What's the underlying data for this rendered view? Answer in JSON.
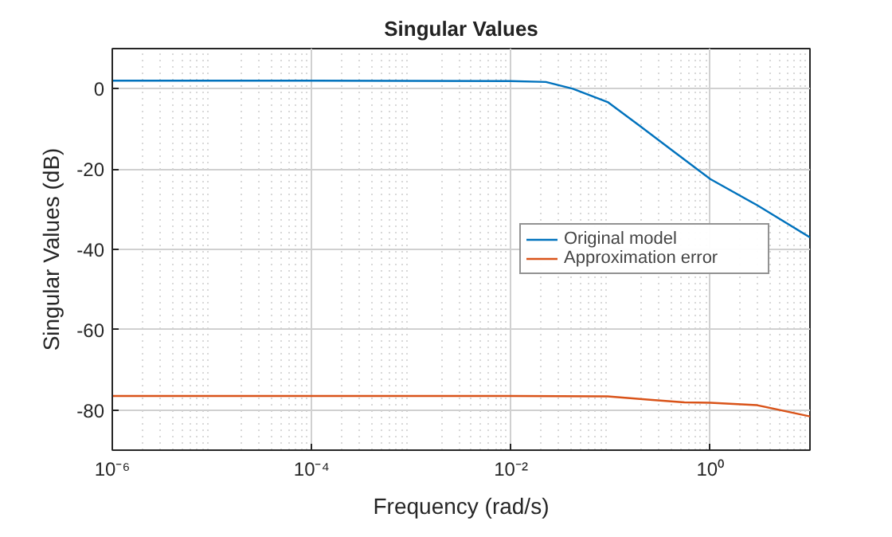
{
  "chart_data": {
    "type": "line",
    "title": "Singular Values",
    "xlabel": "Frequency (rad/s)",
    "ylabel": "Singular Values (dB)",
    "log": "x",
    "xlim": [
      1e-06,
      10
    ],
    "ylim": [
      -90,
      10
    ],
    "xticks": [
      {
        "value": 1e-06,
        "label": "10⁻⁶"
      },
      {
        "value": 0.0001,
        "label": "10⁻⁴"
      },
      {
        "value": 0.01,
        "label": "10⁻²"
      },
      {
        "value": 1,
        "label": "10⁰"
      }
    ],
    "yticks": [
      -80,
      -60,
      -40,
      -20,
      0
    ],
    "grid": true,
    "legend": "right",
    "line_style": "solid",
    "marker": "none",
    "series": [
      {
        "name": "Original model",
        "color": "#0072bd",
        "x": [
          1e-06,
          0.0001,
          0.01,
          0.0224,
          0.0417,
          0.0933,
          0.195,
          0.407,
          1,
          2.95,
          10
        ],
        "values": [
          2,
          2,
          1.9,
          1.7,
          0,
          -3.3,
          -9.2,
          -15.2,
          -22.5,
          -29,
          -37
        ]
      },
      {
        "name": "Approximation error",
        "color": "#d95319",
        "x": [
          1e-06,
          0.0001,
          0.01,
          0.0933,
          0.263,
          0.55,
          1,
          2.95,
          10
        ],
        "values": [
          -76.5,
          -76.5,
          -76.5,
          -76.6,
          -77.5,
          -78.1,
          -78.2,
          -78.8,
          -81.6
        ]
      }
    ]
  }
}
